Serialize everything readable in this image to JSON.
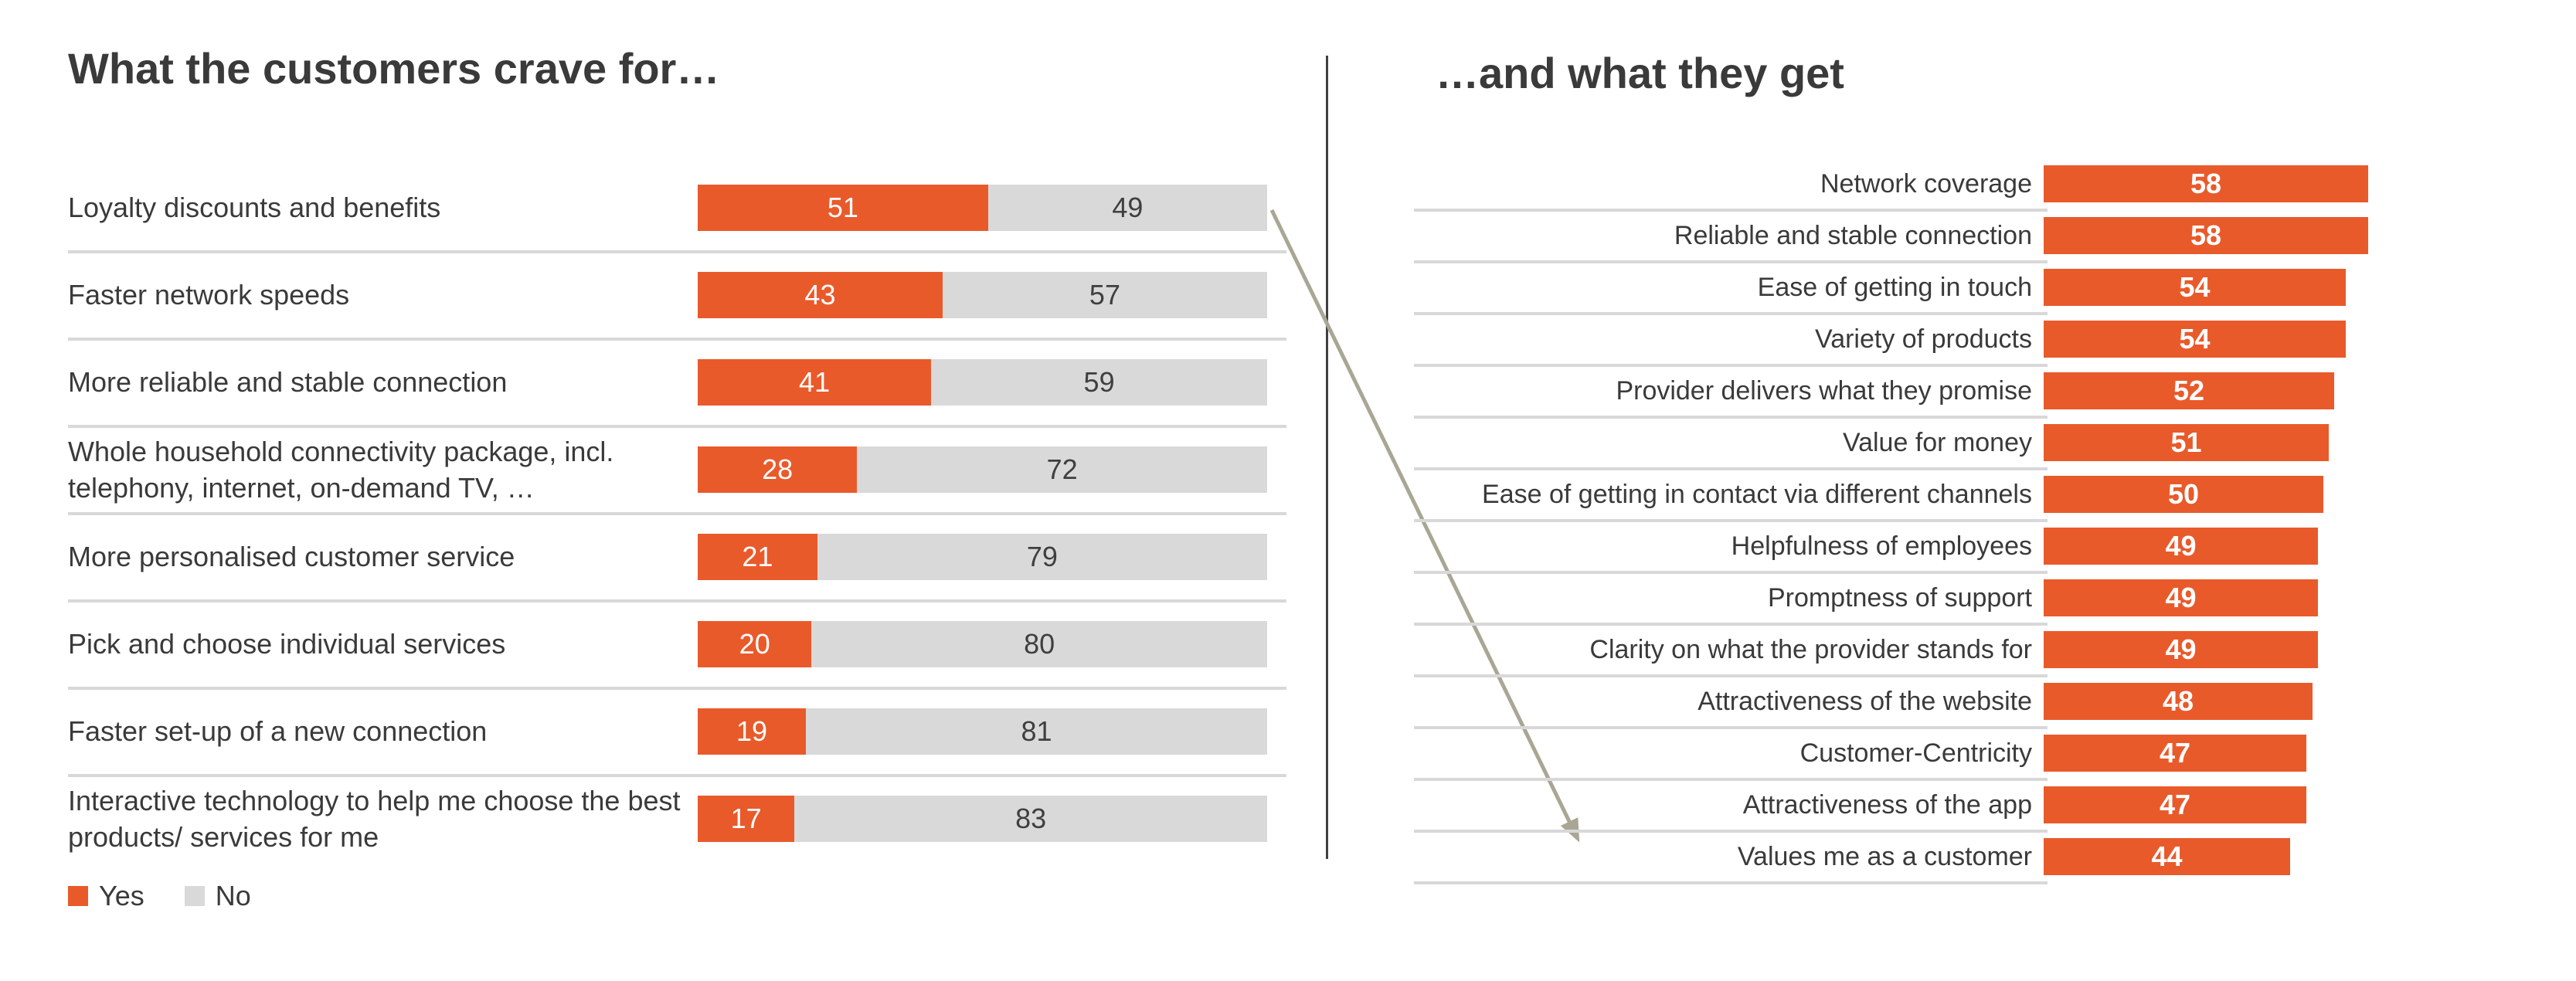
{
  "chart_data": [
    {
      "id": "customer-craves",
      "type": "bar",
      "orientation": "horizontal",
      "stacked": true,
      "title": "What the customers crave for…",
      "categories": [
        "Loyalty discounts and benefits",
        "Faster network speeds",
        "More reliable and stable connection",
        "Whole household connectivity package, incl. telephony, internet, on-demand TV, …",
        "More personalised customer service",
        "Pick and choose individual services",
        "Faster set-up of a new connection",
        "Interactive technology to help me choose the best products/ services for me"
      ],
      "series": [
        {
          "name": "Yes",
          "color": "#E95A2B",
          "values": [
            51,
            43,
            41,
            28,
            21,
            20,
            19,
            17
          ]
        },
        {
          "name": "No",
          "color": "#D9D9D9",
          "values": [
            49,
            57,
            59,
            72,
            79,
            80,
            81,
            83
          ]
        }
      ],
      "xlim": [
        0,
        100
      ],
      "grid": false,
      "legend_position": "bottom-left",
      "value_labels": "inside"
    },
    {
      "id": "customer-gets",
      "type": "bar",
      "orientation": "horizontal",
      "title": "…and what they get",
      "categories": [
        "Network coverage",
        "Reliable and stable connection",
        "Ease of getting in touch",
        "Variety of products",
        "Provider delivers what they promise",
        "Value for money",
        "Ease of getting in contact via different channels",
        "Helpfulness of employees",
        "Promptness of support",
        "Clarity on what the provider stands for",
        "Attractiveness of the website",
        "Customer-Centricity",
        "Attractiveness of the app",
        "Values me as a customer"
      ],
      "values": [
        58,
        58,
        54,
        54,
        52,
        51,
        50,
        49,
        49,
        49,
        48,
        47,
        47,
        44
      ],
      "bar_color": "#E95A2B",
      "grid": false,
      "legend_position": "none",
      "value_labels": "inside"
    }
  ],
  "annotation": {
    "arrow_from": "Loyalty discounts and benefits",
    "arrow_to": "Values me as a customer"
  },
  "colors": {
    "bar_orange": "#E95A2B",
    "bar_gray": "#D9D9D9",
    "separator": "#D8D8D8",
    "divider": "#404040",
    "text": "#3A3A3A",
    "value_on_gray": "#3F3F3F",
    "value_on_orange": "#FFFFFF",
    "arrow": "#A9A794",
    "background": "#FFFFFF"
  }
}
